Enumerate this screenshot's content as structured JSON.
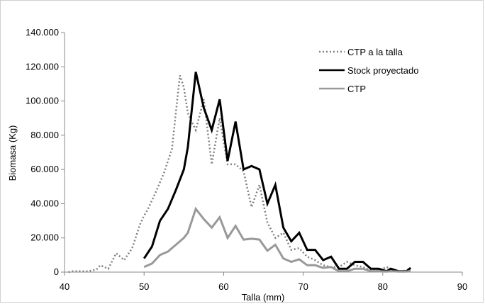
{
  "chart_data": {
    "type": "line",
    "title": "",
    "xlabel": "Talla (mm)",
    "ylabel": "Biomasa (Kg)",
    "xlim": [
      40,
      90
    ],
    "ylim": [
      0,
      140000
    ],
    "x_ticks": [
      40,
      50,
      60,
      70,
      80,
      90
    ],
    "x_tick_labels": [
      "40",
      "50",
      "60",
      "70",
      "80",
      "90"
    ],
    "y_ticks": [
      0,
      20000,
      40000,
      60000,
      80000,
      100000,
      120000,
      140000
    ],
    "y_tick_labels": [
      "0",
      "20.000",
      "40.000",
      "60.000",
      "80.000",
      "100.000",
      "120.000",
      "140.000"
    ],
    "grid": false,
    "legend_position": "top-right",
    "series": [
      {
        "name": "CTP a la talla",
        "color": "#808080",
        "style": "dotted",
        "points": [
          [
            40.5,
            0
          ],
          [
            41,
            500
          ],
          [
            42,
            500
          ],
          [
            43,
            500
          ],
          [
            44,
            1500
          ],
          [
            44.5,
            4000
          ],
          [
            45.5,
            2000
          ],
          [
            46.5,
            11000
          ],
          [
            47.5,
            7000
          ],
          [
            48.5,
            14000
          ],
          [
            49.5,
            28000
          ],
          [
            50,
            33000
          ],
          [
            50.5,
            37000
          ],
          [
            51.5,
            47000
          ],
          [
            52.5,
            58000
          ],
          [
            53.5,
            72000
          ],
          [
            54.5,
            115000
          ],
          [
            55,
            108000
          ],
          [
            55.5,
            93000
          ],
          [
            56.5,
            83000
          ],
          [
            57.5,
            101000
          ],
          [
            58.5,
            63000
          ],
          [
            59.5,
            90000
          ],
          [
            60.5,
            63000
          ],
          [
            61.5,
            63000
          ],
          [
            62.5,
            59000
          ],
          [
            63.5,
            38000
          ],
          [
            64.5,
            51000
          ],
          [
            65.5,
            29000
          ],
          [
            66.5,
            20000
          ],
          [
            67.5,
            23000
          ],
          [
            68.5,
            13000
          ],
          [
            69.5,
            14000
          ],
          [
            70.5,
            9000
          ],
          [
            71.5,
            7000
          ],
          [
            72.5,
            4000
          ],
          [
            73.5,
            3000
          ],
          [
            74.5,
            3000
          ],
          [
            75.5,
            6000
          ],
          [
            76.5,
            4000
          ],
          [
            77.5,
            3000
          ],
          [
            78.5,
            1000
          ],
          [
            79.5,
            1000
          ],
          [
            80.5,
            3000
          ],
          [
            81.5,
            500
          ],
          [
            82.5,
            500
          ],
          [
            83.5,
            2000
          ]
        ]
      },
      {
        "name": "Stock proyectado",
        "color": "#000000",
        "style": "solid",
        "points": [
          [
            50,
            8000
          ],
          [
            51,
            15000
          ],
          [
            52,
            30000
          ],
          [
            53,
            37000
          ],
          [
            54,
            48000
          ],
          [
            55,
            60000
          ],
          [
            55.5,
            73000
          ],
          [
            56.5,
            117000
          ],
          [
            57.5,
            96000
          ],
          [
            58.5,
            83000
          ],
          [
            59.5,
            101000
          ],
          [
            60.5,
            65000
          ],
          [
            61.5,
            88000
          ],
          [
            62.5,
            60000
          ],
          [
            63.5,
            62000
          ],
          [
            64.5,
            60000
          ],
          [
            65.5,
            40000
          ],
          [
            66.5,
            51000
          ],
          [
            67.5,
            26000
          ],
          [
            68.5,
            18000
          ],
          [
            69.5,
            23000
          ],
          [
            70.5,
            13000
          ],
          [
            71.5,
            13000
          ],
          [
            72.5,
            7000
          ],
          [
            73.5,
            9000
          ],
          [
            74.5,
            2000
          ],
          [
            75.5,
            2000
          ],
          [
            76.5,
            6000
          ],
          [
            77.5,
            6000
          ],
          [
            78.5,
            2000
          ],
          [
            79.5,
            2000
          ],
          [
            80.5,
            500
          ],
          [
            81,
            2000
          ],
          [
            82,
            500
          ],
          [
            83,
            500
          ],
          [
            83.5,
            2500
          ]
        ]
      },
      {
        "name": "CTP",
        "color": "#999999",
        "style": "solid",
        "points": [
          [
            50,
            3000
          ],
          [
            51,
            5000
          ],
          [
            52,
            10000
          ],
          [
            53,
            12000
          ],
          [
            54,
            16000
          ],
          [
            55,
            20000
          ],
          [
            55.5,
            23000
          ],
          [
            56.5,
            37000
          ],
          [
            57.5,
            31000
          ],
          [
            58.5,
            26000
          ],
          [
            59.5,
            32000
          ],
          [
            60.5,
            20000
          ],
          [
            61.5,
            27000
          ],
          [
            62.5,
            19000
          ],
          [
            63.5,
            19500
          ],
          [
            64.5,
            19000
          ],
          [
            65.5,
            12500
          ],
          [
            66.5,
            16000
          ],
          [
            67.5,
            8000
          ],
          [
            68.5,
            6000
          ],
          [
            69.5,
            7500
          ],
          [
            70.5,
            4000
          ],
          [
            71.5,
            4000
          ],
          [
            72.5,
            2500
          ],
          [
            73.5,
            3000
          ],
          [
            74.5,
            500
          ],
          [
            75.5,
            500
          ],
          [
            76.5,
            2000
          ],
          [
            77.5,
            2000
          ],
          [
            78.5,
            500
          ],
          [
            79.5,
            500
          ],
          [
            80.5,
            300
          ],
          [
            81,
            500
          ],
          [
            82,
            300
          ],
          [
            83,
            300
          ],
          [
            83.5,
            800
          ]
        ]
      }
    ]
  }
}
